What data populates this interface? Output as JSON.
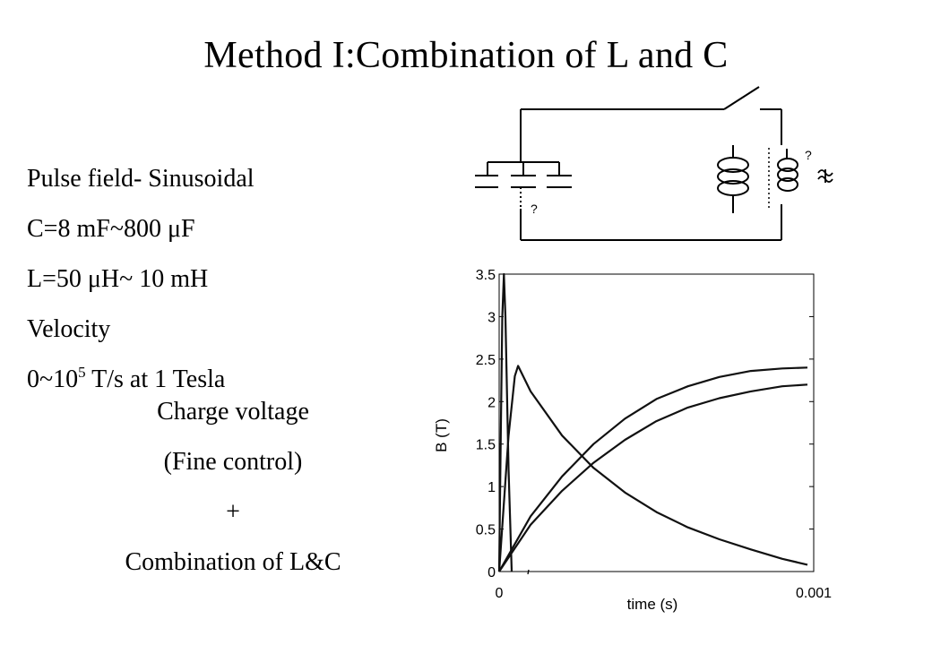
{
  "slide": {
    "title": "Method I:Combination of L and C"
  },
  "left_text": {
    "pulse_field": "Pulse field- Sinusoidal",
    "capacitance": "C=8 mF~800 μF",
    "inductance": "L=50 μH~ 10 mH",
    "velocity_label": "Velocity",
    "velocity_value_prefix": "0~10",
    "velocity_exponent": "5",
    "velocity_value_suffix": " T/s at 1 Tesla",
    "charge_voltage": "Charge voltage",
    "fine_control": "(Fine control)",
    "plus": "+",
    "combination": "Combination of L&C"
  },
  "circuit": {
    "unknown_label_capacitor": "?",
    "unknown_label_coil": "?",
    "wave_glyph": "♒"
  },
  "chart_data": {
    "type": "line",
    "title": "",
    "xlabel": "time (s)",
    "ylabel": "B (T)",
    "xlim": [
      0,
      0.001
    ],
    "ylim": [
      0,
      3.5
    ],
    "x_tick_labels": [
      "0",
      "0.001"
    ],
    "y_tick_labels": [
      "0",
      "0.5",
      "1",
      "1.5",
      "2",
      "2.5",
      "3",
      "3.5"
    ],
    "grid": false,
    "series": [
      {
        "x": [
          0,
          5e-06,
          1e-05,
          1.5e-05,
          2e-05,
          3e-05,
          4e-05
        ],
        "y": [
          0,
          1.6,
          3.0,
          3.5,
          3.0,
          1.2,
          0
        ]
      },
      {
        "x": [
          0,
          3e-05,
          5e-05,
          6e-05,
          0.0001,
          0.0002,
          0.0003,
          0.0004,
          0.0005,
          0.0006,
          0.0007,
          0.0008,
          0.0009,
          0.00098
        ],
        "y": [
          0,
          1.6,
          2.3,
          2.42,
          2.12,
          1.6,
          1.22,
          0.93,
          0.7,
          0.52,
          0.38,
          0.26,
          0.15,
          0.08
        ]
      },
      {
        "x": [
          0,
          0.0001,
          0.0002,
          0.0003,
          0.0004,
          0.0005,
          0.0006,
          0.0007,
          0.0008,
          0.0009,
          0.00098
        ],
        "y": [
          0,
          0.65,
          1.12,
          1.5,
          1.8,
          2.03,
          2.18,
          2.29,
          2.36,
          2.39,
          2.4
        ]
      },
      {
        "x": [
          0,
          0.0001,
          0.0002,
          0.0003,
          0.0004,
          0.0005,
          0.0006,
          0.0007,
          0.0008,
          0.0009,
          0.00098
        ],
        "y": [
          0,
          0.55,
          0.95,
          1.28,
          1.55,
          1.77,
          1.93,
          2.04,
          2.12,
          2.18,
          2.2
        ]
      }
    ]
  }
}
